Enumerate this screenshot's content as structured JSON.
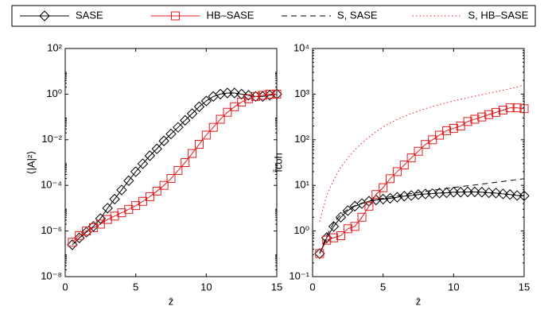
{
  "chart_data": [
    {
      "type": "line",
      "xlabel": "z̄",
      "ylabel": "⟨|A|²⟩",
      "log_y": true,
      "xlim": [
        0,
        15
      ],
      "xticks": [
        0,
        5,
        10,
        15
      ],
      "ylim": [
        1e-08,
        100
      ],
      "yticks": [
        {
          "value": 1e-08,
          "label": "10⁻⁸"
        },
        {
          "value": 1e-06,
          "label": "10⁻⁶"
        },
        {
          "value": 0.0001,
          "label": "10⁻⁴"
        },
        {
          "value": 0.01,
          "label": "10⁻²"
        },
        {
          "value": 1,
          "label": "10⁰"
        },
        {
          "value": 100,
          "label": "10²"
        }
      ],
      "x": [
        0.5,
        1,
        1.5,
        2,
        2.5,
        3,
        3.5,
        4,
        4.5,
        5,
        5.5,
        6,
        6.5,
        7,
        7.5,
        8,
        8.5,
        9,
        9.5,
        10,
        10.5,
        11,
        11.5,
        12,
        12.5,
        13,
        13.5,
        14,
        14.5,
        15
      ],
      "series": [
        {
          "name": "SASE",
          "color": "#000000",
          "marker": "diamond",
          "linestyle": "solid",
          "values": [
            2.5e-07,
            5e-07,
            8.9e-07,
            1.6e-06,
            3.5e-06,
            1e-05,
            2.5e-05,
            6.3e-05,
            0.00016,
            0.0004,
            0.00089,
            0.002,
            0.004,
            0.0089,
            0.018,
            0.035,
            0.071,
            0.14,
            0.28,
            0.5,
            0.79,
            1,
            1.12,
            1.12,
            1,
            0.89,
            0.79,
            0.79,
            0.89,
            1
          ]
        },
        {
          "name": "HB–SASE",
          "color": "#e41a1c",
          "marker": "square",
          "linestyle": "solid",
          "values": [
            3.2e-07,
            6.3e-07,
            1e-06,
            1.4e-06,
            2e-06,
            3.2e-06,
            4.5e-06,
            6.3e-06,
            8.9e-06,
            1.3e-05,
            2e-05,
            3.2e-05,
            5.6e-05,
            0.0001,
            0.0002,
            0.00045,
            0.001,
            0.0025,
            0.0063,
            0.016,
            0.035,
            0.079,
            0.16,
            0.28,
            0.45,
            0.63,
            0.79,
            0.89,
            1,
            1
          ]
        }
      ]
    },
    {
      "type": "line",
      "xlabel": "z̄",
      "ylabel": "Īcoh",
      "log_y": true,
      "legend": "top",
      "xlim": [
        0,
        15
      ],
      "xticks": [
        0,
        5,
        10,
        15
      ],
      "ylim": [
        0.1,
        10000
      ],
      "yticks": [
        {
          "value": 0.1,
          "label": "10⁻¹"
        },
        {
          "value": 1,
          "label": "10⁰"
        },
        {
          "value": 10,
          "label": "10¹"
        },
        {
          "value": 100,
          "label": "10²"
        },
        {
          "value": 1000,
          "label": "10³"
        },
        {
          "value": 10000,
          "label": "10⁴"
        }
      ],
      "x": [
        0.5,
        1,
        1.5,
        2,
        2.5,
        3,
        3.5,
        4,
        4.5,
        5,
        5.5,
        6,
        6.5,
        7,
        7.5,
        8,
        8.5,
        9,
        9.5,
        10,
        10.5,
        11,
        11.5,
        12,
        12.5,
        13,
        13.5,
        14,
        14.5,
        15
      ],
      "series": [
        {
          "name": "SASE",
          "color": "#000000",
          "marker": "diamond",
          "linestyle": "solid",
          "values": [
            0.32,
            0.71,
            1.26,
            2.0,
            2.8,
            3.5,
            4.0,
            4.5,
            4.8,
            5.0,
            5.2,
            5.5,
            5.8,
            6.0,
            6.3,
            6.5,
            6.6,
            6.8,
            6.9,
            7.1,
            7.1,
            7.2,
            7.2,
            7.1,
            6.9,
            6.8,
            6.5,
            6.3,
            6.0,
            5.9
          ]
        },
        {
          "name": "HB–SASE",
          "color": "#e41a1c",
          "marker": "square",
          "linestyle": "solid",
          "values": [
            0.32,
            0.63,
            0.71,
            0.79,
            1.12,
            1.26,
            2.0,
            3.5,
            6.3,
            8.9,
            14,
            20,
            28,
            40,
            56,
            79,
            100,
            126,
            158,
            178,
            200,
            251,
            282,
            316,
            355,
            398,
            447,
            501,
            501,
            479
          ]
        },
        {
          "name": "S, SASE",
          "color": "#000000",
          "marker": "none",
          "linestyle": "dashed",
          "values": [
            0.32,
            0.8,
            1.5,
            2.3,
            3.0,
            3.6,
            4.1,
            4.5,
            4.9,
            5.2,
            5.6,
            5.9,
            6.3,
            6.6,
            7.0,
            7.4,
            7.8,
            8.2,
            8.6,
            9.0,
            9.4,
            9.8,
            10.2,
            10.7,
            11.2,
            11.7,
            12.2,
            12.8,
            13.4,
            14.0
          ]
        },
        {
          "name": "S, HB–SASE",
          "color": "#e41a1c",
          "marker": "none",
          "linestyle": "dotted",
          "values": [
            1.6,
            6,
            13,
            25,
            40,
            60,
            85,
            115,
            150,
            190,
            235,
            280,
            325,
            375,
            425,
            480,
            535,
            590,
            650,
            710,
            770,
            830,
            900,
            970,
            1050,
            1130,
            1220,
            1320,
            1430,
            1600
          ]
        }
      ]
    }
  ]
}
